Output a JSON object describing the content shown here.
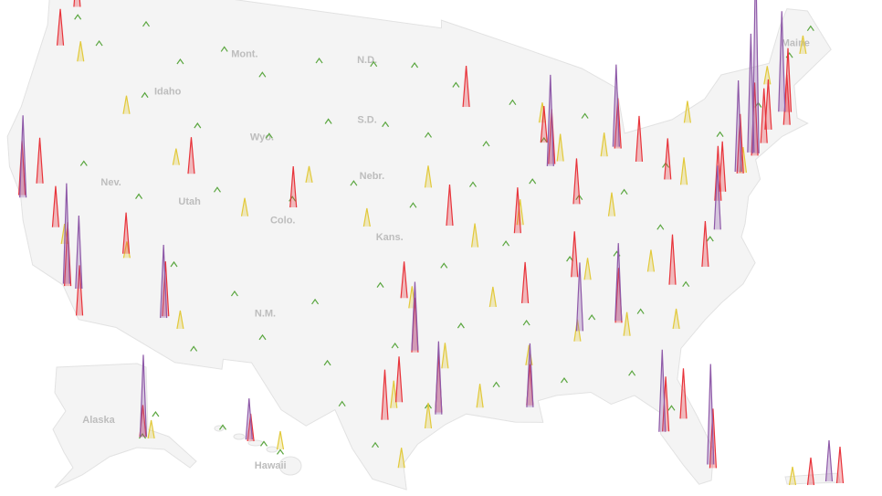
{
  "map": {
    "labels": [
      {
        "text": "Mont.",
        "lon": -109.5,
        "lat": 47
      },
      {
        "text": "N.D.",
        "lon": -100.5,
        "lat": 47.3
      },
      {
        "text": "Maine",
        "lon": -69.3,
        "lat": 45.6
      },
      {
        "text": "Idaho",
        "lon": -114.5,
        "lat": 44.5
      },
      {
        "text": "S.D.",
        "lon": -100.3,
        "lat": 44.3
      },
      {
        "text": "Wyo.",
        "lon": -107.5,
        "lat": 43
      },
      {
        "text": "Nebr.",
        "lon": -99.8,
        "lat": 41.5
      },
      {
        "text": "Nev.",
        "lon": -117,
        "lat": 39.5
      },
      {
        "text": "Utah",
        "lon": -111.7,
        "lat": 39.3
      },
      {
        "text": "Colo.",
        "lon": -105.5,
        "lat": 39
      },
      {
        "text": "Kans.",
        "lon": -98.5,
        "lat": 38.5
      },
      {
        "text": "N.M.",
        "lon": -106,
        "lat": 34.3
      },
      {
        "text": "Alaska",
        "lon": -160,
        "lat": 63.5
      },
      {
        "text": "Hawaii",
        "lon": -156.6,
        "lat": 19.8
      }
    ],
    "spikes": [
      {
        "color": "#5aa63f",
        "points": [
          [
            -122,
            47,
            5
          ],
          [
            -120,
            46,
            5
          ],
          [
            -117,
            47.5,
            5
          ],
          [
            -114,
            46,
            5
          ],
          [
            -111,
            47,
            5
          ],
          [
            -108,
            46,
            5
          ],
          [
            -104,
            47,
            5
          ],
          [
            -100,
            47,
            5
          ],
          [
            -97,
            47,
            5
          ],
          [
            -94,
            46,
            5
          ],
          [
            -90,
            45,
            5
          ],
          [
            -116,
            44,
            5
          ],
          [
            -112,
            43,
            5
          ],
          [
            -107,
            43,
            5
          ],
          [
            -103,
            44,
            5
          ],
          [
            -99,
            44,
            5
          ],
          [
            -96,
            43.5,
            5
          ],
          [
            -92,
            43,
            5
          ],
          [
            -88,
            43,
            5
          ],
          [
            -85,
            44,
            5
          ],
          [
            -119,
            40,
            5
          ],
          [
            -115,
            39,
            5
          ],
          [
            -110,
            40,
            5
          ],
          [
            -105,
            40,
            5
          ],
          [
            -101,
            41,
            5
          ],
          [
            -97,
            40,
            5
          ],
          [
            -93,
            41,
            5
          ],
          [
            -89,
            41,
            5
          ],
          [
            -86,
            40,
            5
          ],
          [
            -83,
            40,
            5
          ],
          [
            -80,
            41,
            5
          ],
          [
            -76,
            42,
            5
          ],
          [
            -73,
            43,
            5
          ],
          [
            -112,
            36,
            5
          ],
          [
            -108,
            35,
            5
          ],
          [
            -103,
            35,
            5
          ],
          [
            -99,
            36,
            5
          ],
          [
            -95,
            37,
            5
          ],
          [
            -91,
            38,
            5
          ],
          [
            -87,
            37,
            5
          ],
          [
            -84,
            37,
            5
          ],
          [
            -81,
            38,
            5
          ],
          [
            -78,
            37,
            5
          ],
          [
            -110,
            32,
            5
          ],
          [
            -106,
            33,
            5
          ],
          [
            -102,
            32,
            5
          ],
          [
            -98,
            33,
            5
          ],
          [
            -94,
            34,
            5
          ],
          [
            -90,
            34,
            5
          ],
          [
            -86,
            34,
            5
          ],
          [
            -83,
            34,
            5
          ],
          [
            -80,
            35,
            5
          ],
          [
            -96,
            30,
            5
          ],
          [
            -92,
            31,
            5
          ],
          [
            -88,
            31,
            5
          ],
          [
            -84,
            31,
            5
          ],
          [
            -82,
            29,
            5
          ],
          [
            -99,
            28,
            5
          ],
          [
            -101,
            30,
            5
          ],
          [
            -150,
            61,
            5
          ],
          [
            -147,
            64,
            5
          ],
          [
            -135,
            58,
            5
          ],
          [
            -157,
            21,
            5
          ],
          [
            -156,
            20.5,
            5
          ],
          [
            -159.5,
            22,
            5
          ],
          [
            -70,
            45,
            5
          ],
          [
            -68,
            46,
            5
          ]
        ]
      },
      {
        "color": "#e2c93b",
        "points": [
          [
            -121,
            45,
            22
          ],
          [
            -117,
            43,
            20
          ],
          [
            -113,
            41,
            18
          ],
          [
            -108,
            39,
            20
          ],
          [
            -104,
            41,
            18
          ],
          [
            -100,
            39,
            20
          ],
          [
            -96,
            41,
            24
          ],
          [
            -93,
            38,
            26
          ],
          [
            -90,
            39,
            28
          ],
          [
            -87,
            42,
            30
          ],
          [
            -84,
            39,
            26
          ],
          [
            -82,
            36,
            24
          ],
          [
            -79,
            40,
            30
          ],
          [
            -75,
            40,
            28
          ],
          [
            -97,
            35,
            24
          ],
          [
            -95,
            32,
            28
          ],
          [
            -93,
            30,
            26
          ],
          [
            -98,
            30,
            30
          ],
          [
            -96,
            29,
            28
          ],
          [
            -97.5,
            27,
            22
          ],
          [
            -90,
            32,
            22
          ],
          [
            -87,
            33,
            24
          ],
          [
            -84,
            33,
            26
          ],
          [
            -81,
            33,
            22
          ],
          [
            -86,
            36,
            24
          ],
          [
            -92,
            35,
            22
          ],
          [
            -111,
            33,
            20
          ],
          [
            -115,
            36,
            18
          ],
          [
            -119,
            36,
            22
          ],
          [
            -88,
            44,
            22
          ],
          [
            -84,
            42,
            26
          ],
          [
            -78,
            43,
            24
          ],
          [
            -72,
            44,
            20
          ],
          [
            -69,
            45,
            20
          ],
          [
            -148,
            61,
            20
          ],
          [
            -156,
            20.8,
            20
          ],
          [
            -67.1,
            18.2,
            20
          ]
        ]
      },
      {
        "color": "#e8333a",
        "points": [
          [
            -122.3,
            47.6,
            45
          ],
          [
            -122.7,
            45.5,
            40
          ],
          [
            -122.4,
            37.8,
            60
          ],
          [
            -121.5,
            38.6,
            50
          ],
          [
            -119.8,
            36.7,
            45
          ],
          [
            -118.2,
            34,
            70
          ],
          [
            -117.1,
            32.7,
            55
          ],
          [
            -115.1,
            36.2,
            45
          ],
          [
            -112,
            33.5,
            60
          ],
          [
            -111.9,
            40.7,
            40
          ],
          [
            -104.9,
            39.7,
            45
          ],
          [
            -97.7,
            30.3,
            50
          ],
          [
            -96.8,
            32.8,
            60
          ],
          [
            -95.4,
            29.8,
            65
          ],
          [
            -98.5,
            29.4,
            55
          ],
          [
            -97.5,
            35.5,
            40
          ],
          [
            -94.6,
            39.1,
            45
          ],
          [
            -90.2,
            38.6,
            50
          ],
          [
            -87.6,
            41.9,
            60
          ],
          [
            -86.2,
            39.8,
            50
          ],
          [
            -83,
            42.3,
            55
          ],
          [
            -81.7,
            41.5,
            50
          ],
          [
            -80,
            40.4,
            45
          ],
          [
            -84.4,
            33.7,
            60
          ],
          [
            -86.8,
            36.2,
            50
          ],
          [
            -90,
            35.1,
            45
          ],
          [
            -80.8,
            35.2,
            55
          ],
          [
            -78.6,
            35.8,
            50
          ],
          [
            -77,
            38.9,
            60
          ],
          [
            -76.6,
            39.3,
            55
          ],
          [
            -75.2,
            40,
            65
          ],
          [
            -74,
            40.7,
            80
          ],
          [
            -73.2,
            41.2,
            60
          ],
          [
            -71.1,
            42.4,
            70
          ],
          [
            -71.4,
            41.8,
            55
          ],
          [
            -72.7,
            41.8,
            55
          ],
          [
            -81.4,
            28.5,
            55
          ],
          [
            -82.5,
            28,
            60
          ],
          [
            -80.2,
            25.8,
            65
          ],
          [
            -90.1,
            30,
            45
          ],
          [
            -93.3,
            45,
            45
          ],
          [
            -88,
            43,
            40
          ],
          [
            -157.8,
            21.3,
            30
          ],
          [
            -149.9,
            61.2,
            35
          ],
          [
            -66.6,
            18.2,
            30
          ],
          [
            -65.8,
            18.3,
            40
          ]
        ]
      },
      {
        "color": "#8e59a8",
        "points": [
          [
            -122.3,
            37.7,
            90
          ],
          [
            -118.3,
            34.1,
            110
          ],
          [
            -117.5,
            34,
            80
          ],
          [
            -73.9,
            40.8,
            220
          ],
          [
            -74.2,
            40.9,
            130
          ],
          [
            -71.5,
            42.5,
            110
          ],
          [
            -75.3,
            40.1,
            100
          ],
          [
            -87.7,
            41.8,
            100
          ],
          [
            -83.1,
            42.4,
            90
          ],
          [
            -80.3,
            26,
            110
          ],
          [
            -82.7,
            28,
            90
          ],
          [
            -84.4,
            33.8,
            85
          ],
          [
            -95.4,
            29.7,
            80
          ],
          [
            -96.8,
            32.9,
            75
          ],
          [
            -90.1,
            29.9,
            70
          ],
          [
            -112.1,
            33.4,
            80
          ],
          [
            -157.9,
            21.4,
            45
          ],
          [
            -149.8,
            61.2,
            90
          ],
          [
            -77.4,
            37.5,
            70
          ],
          [
            -86.8,
            33.5,
            75
          ],
          [
            -66.1,
            18.4,
            45
          ]
        ]
      }
    ]
  }
}
